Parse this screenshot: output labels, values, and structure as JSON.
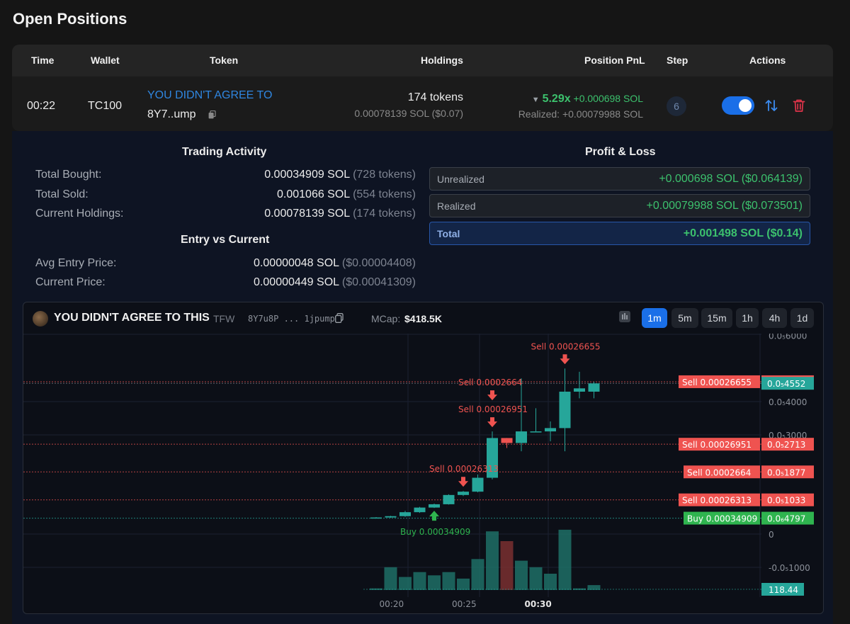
{
  "page_title": "Open Positions",
  "table": {
    "headers": {
      "time": "Time",
      "wallet": "Wallet",
      "token": "Token",
      "holdings": "Holdings",
      "pnl": "Position PnL",
      "step": "Step",
      "actions": "Actions"
    },
    "row": {
      "time": "00:22",
      "wallet": "TC100",
      "token_name": "YOU DIDN'T AGREE TO",
      "token_addr": "8Y7..ump",
      "holdings_tokens": "174 tokens",
      "holdings_value": "0.00078139 SOL ($0.07)",
      "pnl_multiple": "5.29x",
      "pnl_sol": "+0.000698 SOL",
      "realized": "Realized: +0.00079988 SOL",
      "step": "6",
      "auto_enabled": true
    }
  },
  "trading_activity": {
    "title": "Trading Activity",
    "items": [
      {
        "label": "Total Bought:",
        "value": "0.00034909 SOL",
        "extra": "(728 tokens)"
      },
      {
        "label": "Total Sold:",
        "value": "0.001066 SOL",
        "extra": "(554 tokens)"
      },
      {
        "label": "Current Holdings:",
        "value": "0.00078139 SOL",
        "extra": "(174 tokens)"
      }
    ]
  },
  "entry_vs_current": {
    "title": "Entry vs Current",
    "items": [
      {
        "label": "Avg Entry Price:",
        "value": "0.00000048 SOL",
        "extra": "($0.00004408)"
      },
      {
        "label": "Current Price:",
        "value": "0.00000449 SOL",
        "extra": "($0.00041309)"
      }
    ]
  },
  "profit_loss": {
    "title": "Profit & Loss",
    "rows": [
      {
        "label": "Unrealized",
        "value": "+0.000698 SOL ($0.064139)"
      },
      {
        "label": "Realized",
        "value": "+0.00079988 SOL ($0.073501)"
      },
      {
        "label": "Total",
        "value": "+0.001498 SOL ($0.14)"
      }
    ]
  },
  "chart_header": {
    "name": "YOU DIDN'T AGREE TO THIS",
    "symbol": "TFW",
    "address": "8Y7u8P ... 1jpump",
    "mcap_label": "MCap:",
    "mcap_value": "$418.5K",
    "timeframes": [
      "1m",
      "5m",
      "15m",
      "1h",
      "4h",
      "1d"
    ],
    "active_timeframe": "1m"
  },
  "colors": {
    "up": "#26a69a",
    "down": "#ef5350",
    "profit": "#3cc16d",
    "accent": "#1a6fe8",
    "trash": "#e0344a"
  },
  "chart_data": {
    "type": "candlestick",
    "y_axis_labels": [
      "0.0₅6000",
      "0.0₅4000",
      "0.0₅3000",
      "0",
      "-0.0₅1000"
    ],
    "y_axis_values": [
      6e-06,
      4e-06,
      3e-06,
      0,
      -1e-06
    ],
    "x_axis_labels": [
      "00:20",
      "00:25",
      "00:30"
    ],
    "current_price_label": "0.0₅4552",
    "volume_label": "118.44",
    "candles": [
      {
        "t": "00:19",
        "o": 4.9e-07,
        "h": 5.1e-07,
        "l": 4.8e-07,
        "c": 5e-07,
        "v": 1
      },
      {
        "t": "00:20",
        "o": 5e-07,
        "h": 5.5e-07,
        "l": 4.9e-07,
        "c": 5.4e-07,
        "v": 14
      },
      {
        "t": "00:21",
        "o": 5.4e-07,
        "h": 7e-07,
        "l": 5.2e-07,
        "c": 6.6e-07,
        "v": 8
      },
      {
        "t": "00:22",
        "o": 6.6e-07,
        "h": 8.2e-07,
        "l": 6.4e-07,
        "c": 8e-07,
        "v": 11
      },
      {
        "t": "00:23",
        "o": 8e-07,
        "h": 9.2e-07,
        "l": 7.9e-07,
        "c": 9e-07,
        "v": 9
      },
      {
        "t": "00:24",
        "o": 9e-07,
        "h": 1.2e-06,
        "l": 8.9e-07,
        "c": 1.18e-06,
        "v": 11
      },
      {
        "t": "00:25",
        "o": 1.18e-06,
        "h": 1.3e-06,
        "l": 1.15e-06,
        "c": 1.28e-06,
        "v": 7
      },
      {
        "t": "00:26",
        "o": 1.28e-06,
        "h": 1.8e-06,
        "l": 1.26e-06,
        "c": 1.7e-06,
        "v": 19
      },
      {
        "t": "00:27",
        "o": 1.7e-06,
        "h": 3.1e-06,
        "l": 1.65e-06,
        "c": 2.9e-06,
        "v": 36
      },
      {
        "t": "00:28",
        "o": 2.9e-06,
        "h": 2.9e-06,
        "l": 2.6e-06,
        "c": 2.75e-06,
        "v": 30
      },
      {
        "t": "00:29",
        "o": 2.75e-06,
        "h": 4.7e-06,
        "l": 2.5e-06,
        "c": 3.1e-06,
        "v": 18
      },
      {
        "t": "00:30",
        "o": 3.1e-06,
        "h": 3.8e-06,
        "l": 3.1e-06,
        "c": 3.1e-06,
        "v": 14
      },
      {
        "t": "00:31",
        "o": 3.1e-06,
        "h": 3.4e-06,
        "l": 2.8e-06,
        "c": 3.2e-06,
        "v": 10
      },
      {
        "t": "00:32",
        "o": 3.2e-06,
        "h": 5e-06,
        "l": 2.5e-06,
        "c": 4.3e-06,
        "v": 37
      },
      {
        "t": "00:33",
        "o": 4.3e-06,
        "h": 4.9e-06,
        "l": 4.1e-06,
        "c": 4.4e-06,
        "v": 1
      },
      {
        "t": "00:34",
        "o": 4.3e-06,
        "h": 4.6e-06,
        "l": 4.1e-06,
        "c": 4.55e-06,
        "v": 3
      }
    ],
    "price_lines": [
      {
        "side": "sell",
        "label": "Sell 0.00026655",
        "price_label": "0.0₅4600",
        "price": 4.6e-06
      },
      {
        "side": "current",
        "label": "",
        "price_label": "0.0₅4552",
        "price": 4.552e-06
      },
      {
        "side": "sell",
        "label": "Sell 0.00026951",
        "price_label": "0.0₅2713",
        "price": 2.713e-06
      },
      {
        "side": "sell",
        "label": "Sell 0.0002664",
        "price_label": "0.0₅1877",
        "price": 1.877e-06
      },
      {
        "side": "sell",
        "label": "Sell 0.00026313",
        "price_label": "0.0₅1033",
        "price": 1.033e-06
      },
      {
        "side": "buy",
        "label": "Buy 0.00034909",
        "price_label": "0.0₆4797",
        "price": 4.797e-07
      }
    ],
    "trade_markers": [
      {
        "side": "buy",
        "t": "00:23",
        "label": "Buy 0.00034909"
      },
      {
        "side": "sell",
        "t": "00:25",
        "label": "Sell 0.00026313"
      },
      {
        "side": "sell",
        "t": "00:27",
        "label": "Sell 0.00026951"
      },
      {
        "side": "sell",
        "t": "00:27",
        "label": "Sell 0.0002664"
      },
      {
        "side": "sell",
        "t": "00:32",
        "label": "Sell 0.00026655"
      }
    ]
  }
}
